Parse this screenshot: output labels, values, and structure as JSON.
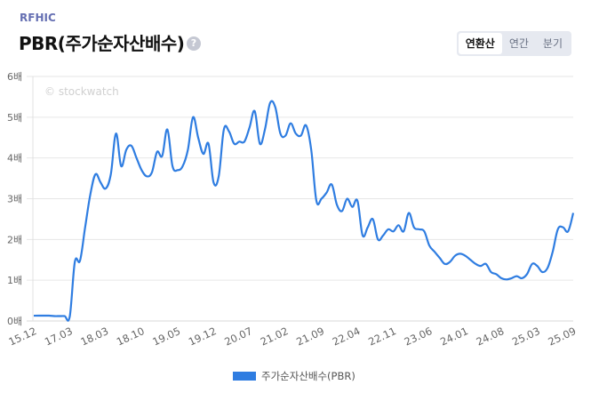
{
  "header": {
    "company": "RFHIC",
    "title": "PBR(주가순자산배수)",
    "help_icon": "question-circle-icon",
    "help_glyph": "?"
  },
  "period_tabs": [
    {
      "label": "연환산",
      "active": true
    },
    {
      "label": "연간",
      "active": false
    },
    {
      "label": "분기",
      "active": false
    }
  ],
  "colors": {
    "line": "#2f7de1",
    "grid": "#e6e6e6",
    "accent": "#6670b3"
  },
  "chart_data": {
    "type": "line",
    "title": "PBR(주가순자산배수)",
    "watermark": "© stockwatch",
    "xlabel": "",
    "ylabel": "",
    "ylim": [
      0,
      6
    ],
    "yticks": [
      {
        "value": 0,
        "label": "0배"
      },
      {
        "value": 1,
        "label": "1배"
      },
      {
        "value": 2,
        "label": "2배"
      },
      {
        "value": 3,
        "label": "3배"
      },
      {
        "value": 4,
        "label": "4배"
      },
      {
        "value": 5,
        "label": "5배"
      },
      {
        "value": 6,
        "label": "6배"
      }
    ],
    "grid": true,
    "legend_position": "bottom-center",
    "x_tick_labels": [
      "15.12",
      "17.03",
      "18.03",
      "18.10",
      "19.05",
      "19.12",
      "20.07",
      "21.02",
      "21.09",
      "22.04",
      "22.11",
      "23.06",
      "24.01",
      "24.08",
      "25.03",
      "25.09"
    ],
    "points_per_tick": 7,
    "series": [
      {
        "name": "주가순자산배수(PBR)",
        "values": [
          0.13,
          0.13,
          0.13,
          0.13,
          0.12,
          0.12,
          0.12,
          0.11,
          1.45,
          1.48,
          2.3,
          3.1,
          3.6,
          3.4,
          3.25,
          3.6,
          4.6,
          3.8,
          4.2,
          4.3,
          4.0,
          3.7,
          3.55,
          3.65,
          4.15,
          4.05,
          4.7,
          3.8,
          3.7,
          3.8,
          4.2,
          5.0,
          4.5,
          4.1,
          4.35,
          3.4,
          3.55,
          4.7,
          4.65,
          4.35,
          4.4,
          4.4,
          4.75,
          5.15,
          4.35,
          4.7,
          5.35,
          5.25,
          4.6,
          4.55,
          4.85,
          4.6,
          4.55,
          4.8,
          4.2,
          2.95,
          3.0,
          3.15,
          3.35,
          2.85,
          2.7,
          3.0,
          2.8,
          2.95,
          2.1,
          2.3,
          2.5,
          2.0,
          2.1,
          2.25,
          2.2,
          2.35,
          2.2,
          2.65,
          2.3,
          2.25,
          2.2,
          1.85,
          1.7,
          1.55,
          1.4,
          1.45,
          1.6,
          1.65,
          1.6,
          1.5,
          1.4,
          1.35,
          1.4,
          1.2,
          1.15,
          1.05,
          1.02,
          1.05,
          1.1,
          1.05,
          1.15,
          1.4,
          1.35,
          1.2,
          1.3,
          1.7,
          2.25,
          2.3,
          2.2,
          2.65
        ]
      }
    ]
  }
}
